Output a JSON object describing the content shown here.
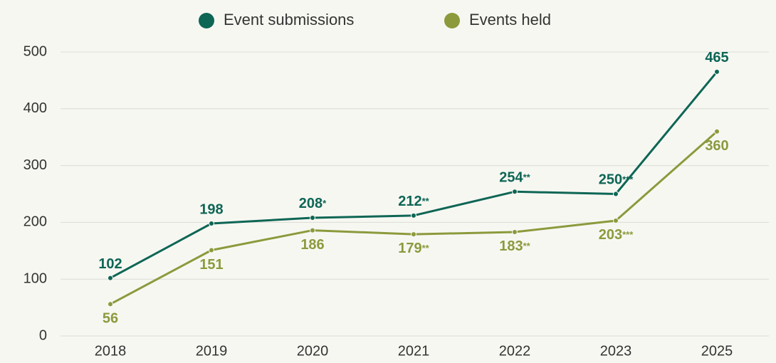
{
  "chart_data": {
    "type": "line",
    "categories": [
      "2018",
      "2019",
      "2020",
      "2021",
      "2022",
      "2023",
      "2025"
    ],
    "series": [
      {
        "name": "Event submissions",
        "color": "#0e6655",
        "values": [
          102,
          198,
          208,
          212,
          254,
          250,
          465
        ],
        "value_labels": [
          "102",
          "198",
          "208*",
          "212**",
          "254**",
          "250***",
          "465"
        ]
      },
      {
        "name": "Events held",
        "color": "#8c9a3c",
        "values": [
          56,
          151,
          186,
          179,
          183,
          203,
          360
        ],
        "value_labels": [
          "56",
          "151",
          "186",
          "179**",
          "183**",
          "203***",
          "360"
        ]
      }
    ],
    "ylim": [
      0,
      500
    ],
    "yticks": [
      0,
      100,
      200,
      300,
      400,
      500
    ],
    "grid": true,
    "legend": "top"
  }
}
